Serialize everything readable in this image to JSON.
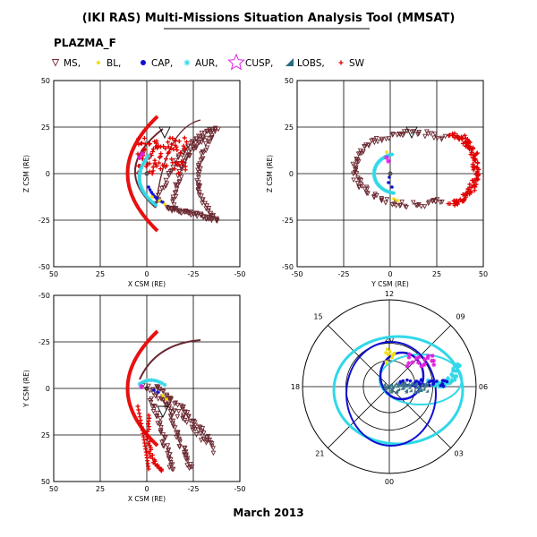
{
  "title": "(IKI RAS) Multi-Missions Situation Analysis Tool (MMSAT)",
  "subtitle": "PLAZMA_F",
  "footer": "March 2013",
  "legend": [
    {
      "label": "MS,",
      "symbol": "triangle",
      "color": "#7a2a3a"
    },
    {
      "label": "BL,",
      "symbol": "dot",
      "color": "#f0e000"
    },
    {
      "label": "CAP,",
      "symbol": "dot",
      "color": "#1010d0"
    },
    {
      "label": "AUR,",
      "symbol": "star",
      "color": "#30d8e8"
    },
    {
      "label": "CUSP,",
      "symbol": "star",
      "color": "#e020e0"
    },
    {
      "label": "LOBS,",
      "symbol": "wedge",
      "color": "#2a6a80"
    },
    {
      "label": "SW",
      "symbol": "dot",
      "color": "#e00000"
    }
  ],
  "colors": {
    "MS": "#6a2830",
    "BL": "#f0e000",
    "CAP": "#1010d0",
    "AUR": "#30d8e8",
    "CUSP": "#e020e0",
    "LOBS": "#3a7888",
    "SW": "#e00000",
    "bowshock": "#e81010"
  },
  "chart_data": [
    {
      "type": "scatter",
      "panel": "x-z",
      "xlabel": "X CSM (RE)",
      "ylabel": "Z CSM (RE)",
      "xlim": [
        50,
        -50
      ],
      "ylim": [
        -50,
        50
      ],
      "xticks": [
        "50",
        "25",
        "0",
        "-25",
        "-50"
      ],
      "yticks": [
        "50",
        "25",
        "0",
        "-25",
        "-50"
      ],
      "grid": true,
      "series": [
        {
          "name": "bowshock",
          "points": [
            [
              -14,
              0
            ],
            [
              -12,
              13
            ],
            [
              -8,
              22
            ],
            [
              0,
              30
            ],
            [
              -12,
              -13
            ],
            [
              -8,
              -22
            ],
            [
              0,
              -30
            ]
          ]
        },
        {
          "name": "SW",
          "points": [
            [
              -10,
              15
            ],
            [
              -5,
              12
            ],
            [
              -2,
              10
            ],
            [
              -8,
              8
            ],
            [
              -3,
              5
            ]
          ]
        },
        {
          "name": "MS",
          "points": [
            [
              -30,
              22
            ],
            [
              -20,
              -20
            ],
            [
              -30,
              -25
            ],
            [
              -15,
              17
            ],
            [
              -20,
              10
            ]
          ]
        },
        {
          "name": "AUR",
          "points": [
            [
              2,
              5
            ],
            [
              0,
              0
            ],
            [
              -2,
              -5
            ],
            [
              -4,
              -10
            ]
          ]
        },
        {
          "name": "CUSP",
          "points": [
            [
              5,
              8
            ]
          ]
        },
        {
          "name": "CAP",
          "points": [
            [
              -2,
              -10
            ],
            [
              0,
              -12
            ]
          ]
        },
        {
          "name": "BL",
          "points": [
            [
              -4,
              -15
            ],
            [
              -6,
              -18
            ]
          ]
        }
      ]
    },
    {
      "type": "scatter",
      "panel": "y-z",
      "xlabel": "Y CSM (RE)",
      "ylabel": "Z CSM (RE)",
      "xlim": [
        -50,
        50
      ],
      "ylim": [
        -50,
        50
      ],
      "xticks": [
        "-50",
        "-25",
        "0",
        "25",
        "50"
      ],
      "yticks": [
        "50",
        "25",
        "0",
        "-25",
        "-50"
      ],
      "grid": true,
      "series": [
        {
          "name": "SW",
          "points": [
            [
              40,
              0
            ],
            [
              45,
              10
            ],
            [
              44,
              -10
            ]
          ]
        },
        {
          "name": "MS",
          "points": [
            [
              20,
              22
            ],
            [
              10,
              -20
            ],
            [
              30,
              -15
            ]
          ]
        },
        {
          "name": "AUR",
          "points": [
            [
              -10,
              0
            ],
            [
              -5,
              -5
            ]
          ]
        },
        {
          "name": "CUSP",
          "points": [
            [
              -2,
              8
            ]
          ]
        }
      ]
    },
    {
      "type": "scatter",
      "panel": "x-y",
      "xlabel": "X CSM (RE)",
      "ylabel": "Y CSM (RE)",
      "xlim": [
        50,
        -50
      ],
      "ylim": [
        -50,
        50
      ],
      "xticks": [
        "50",
        "25",
        "0",
        "-25",
        "-50"
      ],
      "yticks": [
        "-50",
        "-25",
        "0",
        "25",
        "50"
      ],
      "grid": true,
      "series": [
        {
          "name": "bowshock",
          "points": [
            [
              -14,
              0
            ],
            [
              -12,
              -13
            ],
            [
              -8,
              -22
            ],
            [
              0,
              -30
            ],
            [
              -12,
              13
            ],
            [
              -8,
              22
            ],
            [
              0,
              30
            ]
          ]
        },
        {
          "name": "SW",
          "points": [
            [
              -10,
              20
            ],
            [
              -5,
              35
            ],
            [
              -10,
              45
            ]
          ]
        },
        {
          "name": "MS",
          "points": [
            [
              -30,
              -25
            ],
            [
              -25,
              35
            ],
            [
              -20,
              30
            ]
          ]
        },
        {
          "name": "AUR",
          "points": [
            [
              2,
              -3
            ],
            [
              0,
              5
            ]
          ]
        },
        {
          "name": "CUSP",
          "points": [
            [
              5,
              -3
            ]
          ]
        }
      ]
    },
    {
      "type": "scatter",
      "panel": "polar",
      "clock_labels": [
        "12",
        "15",
        "09",
        "18",
        "06",
        "21",
        "03",
        "00"
      ],
      "lat_labels": [
        "20"
      ],
      "grid": true,
      "series": [
        {
          "name": "AUR",
          "points": [
            [
              9,
              25
            ]
          ]
        },
        {
          "name": "CAP",
          "points": [
            [
              0,
              10
            ]
          ]
        },
        {
          "name": "CUSP",
          "points": [
            [
              10,
              16
            ]
          ]
        },
        {
          "name": "LOBS",
          "points": [
            [
              5,
              3
            ]
          ]
        }
      ]
    }
  ]
}
